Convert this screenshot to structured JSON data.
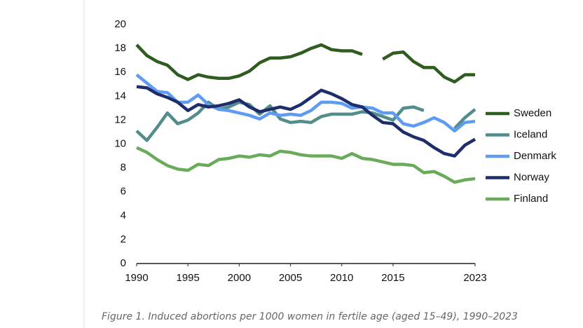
{
  "chart_data": {
    "type": "line",
    "caption": "Figure 1. Induced abortions per 1000 women in fertile age (aged 15–49), 1990–2023",
    "x": [
      1990,
      1991,
      1992,
      1993,
      1994,
      1995,
      1996,
      1997,
      1998,
      1999,
      2000,
      2001,
      2002,
      2003,
      2004,
      2005,
      2006,
      2007,
      2008,
      2009,
      2010,
      2011,
      2012,
      2013,
      2014,
      2015,
      2016,
      2017,
      2018,
      2019,
      2020,
      2021,
      2022,
      2023
    ],
    "xlim": [
      1990,
      2023
    ],
    "xticks": [
      1990,
      1995,
      2000,
      2005,
      2010,
      2015,
      2023
    ],
    "ylim": [
      0,
      20
    ],
    "yticks": [
      0,
      2,
      4,
      6,
      8,
      10,
      12,
      14,
      16,
      18,
      20
    ],
    "grid": false,
    "legend": "right",
    "series": [
      {
        "name": "Sweden",
        "color": "#2f5d1f",
        "values": [
          18.3,
          17.4,
          16.9,
          16.6,
          15.8,
          15.4,
          15.8,
          15.6,
          15.5,
          15.5,
          15.7,
          16.1,
          16.8,
          17.2,
          17.2,
          17.3,
          17.6,
          18.0,
          18.3,
          17.9,
          17.8,
          17.8,
          17.5,
          null,
          17.1,
          17.6,
          17.7,
          16.9,
          16.4,
          16.4,
          15.6,
          15.2,
          15.8,
          15.8
        ]
      },
      {
        "name": "Iceland",
        "color": "#528c8b",
        "values": [
          11.1,
          10.3,
          11.4,
          12.6,
          11.7,
          12.0,
          12.6,
          13.5,
          12.9,
          13.1,
          13.5,
          13.3,
          12.5,
          13.2,
          12.1,
          11.8,
          11.9,
          11.8,
          12.3,
          12.5,
          12.5,
          12.5,
          12.7,
          12.6,
          12.3,
          12.0,
          13.0,
          13.1,
          12.8,
          null,
          null,
          11.3,
          12.2,
          12.9
        ]
      },
      {
        "name": "Denmark",
        "color": "#5d9cf0",
        "values": [
          15.8,
          15.1,
          14.4,
          14.3,
          13.5,
          13.5,
          14.1,
          13.3,
          12.9,
          12.8,
          12.6,
          12.4,
          12.1,
          12.6,
          12.4,
          12.5,
          12.4,
          12.8,
          13.5,
          13.5,
          13.4,
          13.0,
          13.1,
          13.0,
          12.6,
          12.6,
          11.7,
          11.5,
          11.8,
          12.2,
          11.8,
          11.1,
          11.8,
          11.9
        ]
      },
      {
        "name": "Norway",
        "color": "#1e2d6c",
        "values": [
          14.8,
          14.7,
          14.2,
          13.9,
          13.5,
          12.8,
          13.3,
          13.1,
          13.2,
          13.4,
          13.7,
          13.1,
          12.7,
          12.9,
          13.1,
          12.9,
          13.3,
          13.9,
          14.5,
          14.2,
          13.8,
          13.3,
          13.1,
          12.4,
          11.8,
          11.7,
          11.0,
          10.6,
          10.3,
          9.7,
          9.2,
          9.0,
          9.9,
          10.4
        ]
      },
      {
        "name": "Finland",
        "color": "#6aab5b",
        "values": [
          9.7,
          9.3,
          8.7,
          8.2,
          7.9,
          7.8,
          8.3,
          8.2,
          8.7,
          8.8,
          9.0,
          8.9,
          9.1,
          9.0,
          9.4,
          9.3,
          9.1,
          9.0,
          9.0,
          9.0,
          8.8,
          9.2,
          8.8,
          8.7,
          8.5,
          8.3,
          8.3,
          8.2,
          7.6,
          7.7,
          7.3,
          6.8,
          7.0,
          7.1
        ]
      }
    ]
  }
}
